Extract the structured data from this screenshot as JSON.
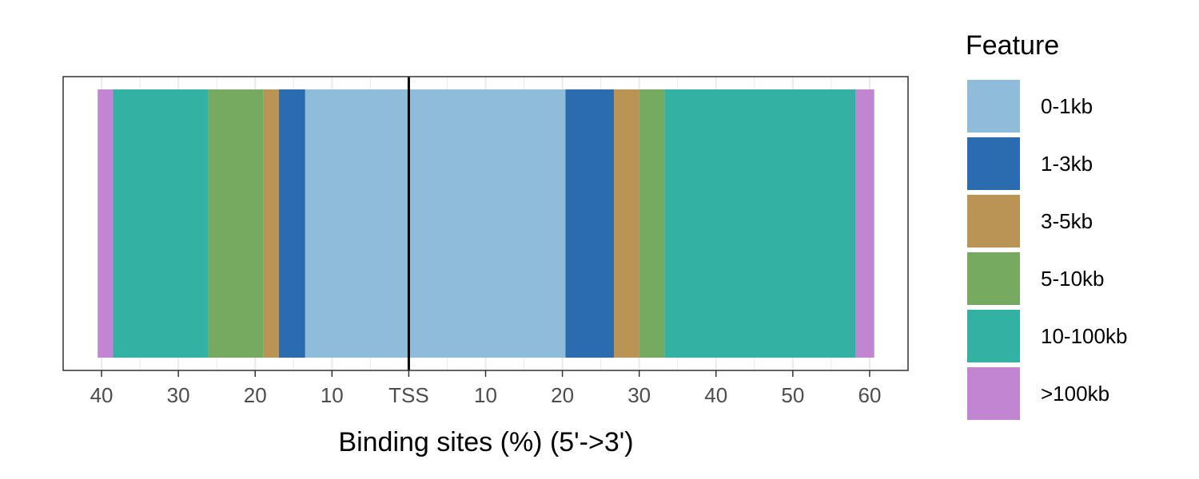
{
  "chart_data": {
    "type": "bar",
    "orientation": "horizontal-stacked-diverging",
    "xlabel": "Binding sites (%) (5'->3')",
    "center_label": "TSS",
    "x_ticks_left": [
      40,
      30,
      20,
      10
    ],
    "x_ticks_right": [
      10,
      20,
      30,
      40,
      50,
      60
    ],
    "xlim": [
      -45,
      65
    ],
    "grid": true,
    "legend": {
      "title": "Feature",
      "position": "right",
      "entries": [
        "0-1kb",
        "1-3kb",
        "3-5kb",
        "5-10kb",
        "10-100kb",
        ">100kb"
      ]
    },
    "colors": {
      "0-1kb": "#8fbcdb",
      "1-3kb": "#2a6caf",
      "3-5kb": "#b99455",
      "5-10kb": "#75aa60",
      "10-100kb": "#33b2a3",
      ">100kb": "#c285d1"
    },
    "series": [
      {
        "name": "0-1kb",
        "upstream": 13.5,
        "downstream": 20.4
      },
      {
        "name": "1-3kb",
        "upstream": 3.4,
        "downstream": 6.3
      },
      {
        "name": "3-5kb",
        "upstream": 2.0,
        "downstream": 3.3
      },
      {
        "name": "5-10kb",
        "upstream": 7.2,
        "downstream": 3.3
      },
      {
        "name": "10-100kb",
        "upstream": 12.4,
        "downstream": 24.9
      },
      {
        "name": ">100kb",
        "upstream": 2.0,
        "downstream": 2.4
      }
    ]
  }
}
